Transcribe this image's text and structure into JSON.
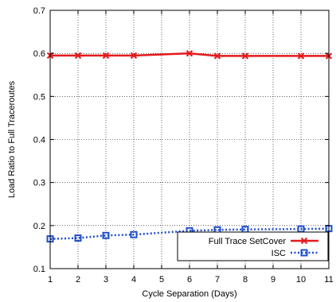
{
  "chart_data": {
    "type": "line",
    "title": "",
    "xlabel": "Cycle Separation (Days)",
    "ylabel": "Load Ratio to Full Traceroutes",
    "xlim": [
      1,
      11
    ],
    "ylim": [
      0.1,
      0.7
    ],
    "x_ticks": [
      1,
      2,
      3,
      4,
      5,
      6,
      7,
      8,
      9,
      10,
      11
    ],
    "y_ticks": [
      "0.1",
      "0.2",
      "0.3",
      "0.4",
      "0.5",
      "0.6",
      "0.7"
    ],
    "grid": true,
    "legend_position": "bottom-right",
    "series": [
      {
        "name": "Full Trace SetCover",
        "color": "#e41a1c",
        "marker": "x",
        "line_style": "solid",
        "x": [
          1,
          2,
          3,
          4,
          6,
          7,
          8,
          10,
          11
        ],
        "values": [
          0.595,
          0.595,
          0.595,
          0.595,
          0.6,
          0.594,
          0.594,
          0.594,
          0.594
        ]
      },
      {
        "name": "ISC",
        "color": "#1f4fcc",
        "marker": "square",
        "line_style": "dotted",
        "x": [
          1,
          2,
          3,
          4,
          6,
          7,
          8,
          10,
          11
        ],
        "values": [
          0.169,
          0.171,
          0.177,
          0.179,
          0.188,
          0.19,
          0.191,
          0.192,
          0.193
        ]
      }
    ]
  }
}
